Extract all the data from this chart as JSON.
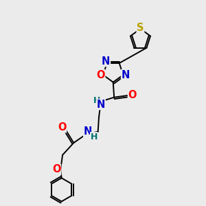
{
  "bg_color": "#ebebeb",
  "bond_color": "#000000",
  "atom_colors": {
    "S": "#b8a000",
    "O": "#ff0000",
    "N": "#0000cc",
    "H": "#007070",
    "C": "#000000"
  },
  "bond_lw": 1.4,
  "font_size": 10.5,
  "font_size_h": 9.0
}
